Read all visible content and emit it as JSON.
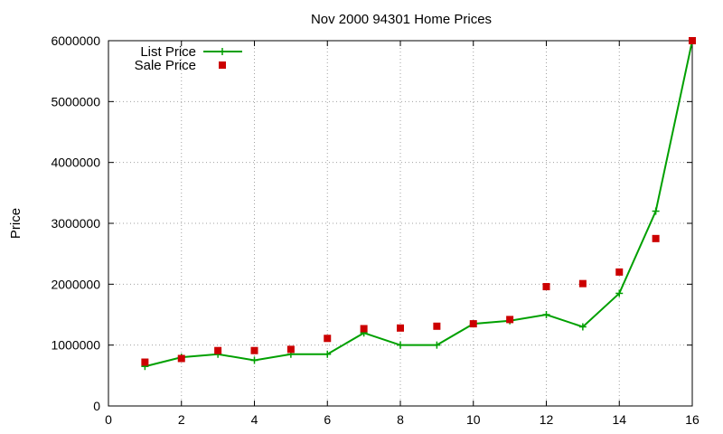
{
  "chart_data": {
    "type": "line",
    "title": "Nov 2000 94301 Home Prices",
    "xlabel": "",
    "ylabel": "Price",
    "xlim": [
      0,
      16
    ],
    "ylim": [
      0,
      6000000
    ],
    "xticks": [
      0,
      2,
      4,
      6,
      8,
      10,
      12,
      14,
      16
    ],
    "yticks": [
      0,
      1000000,
      2000000,
      3000000,
      4000000,
      5000000,
      6000000
    ],
    "grid": true,
    "legend_position": "top-left",
    "series": [
      {
        "name": "List Price",
        "style": "line-with-plus-markers",
        "color": "#00a000",
        "x": [
          1,
          2,
          3,
          4,
          5,
          6,
          7,
          8,
          9,
          10,
          11,
          12,
          13,
          14,
          15,
          16
        ],
        "y": [
          650000,
          800000,
          850000,
          750000,
          850000,
          850000,
          1200000,
          1000000,
          1000000,
          1350000,
          1400000,
          1500000,
          1300000,
          1850000,
          3200000,
          6000000
        ]
      },
      {
        "name": "Sale Price",
        "style": "square-markers",
        "color": "#cc0000",
        "x": [
          1,
          2,
          3,
          4,
          5,
          6,
          7,
          8,
          9,
          10,
          11,
          12,
          13,
          14,
          15,
          16
        ],
        "y": [
          720000,
          780000,
          910000,
          910000,
          930000,
          1110000,
          1270000,
          1280000,
          1310000,
          1350000,
          1420000,
          1960000,
          2010000,
          2200000,
          2750000,
          6000000
        ]
      }
    ]
  }
}
